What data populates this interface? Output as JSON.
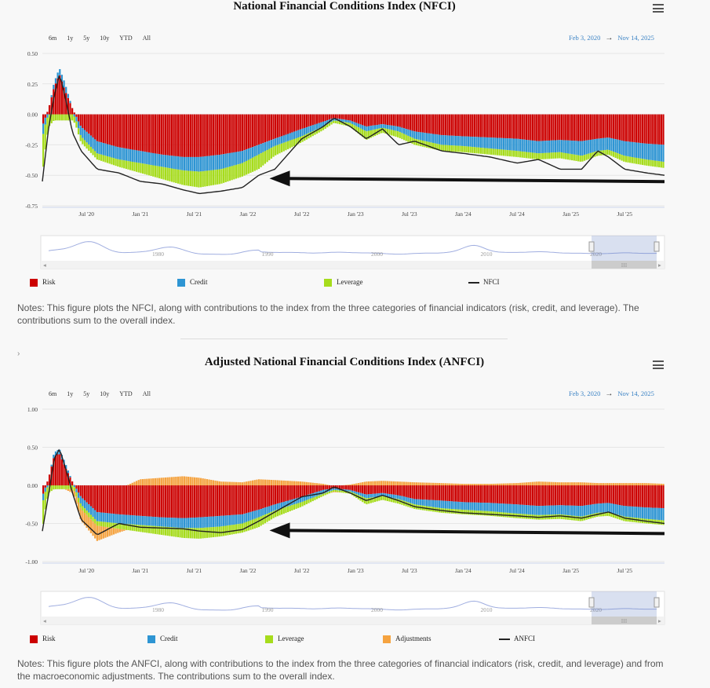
{
  "charts": [
    {
      "id": "nfci",
      "title": "National Financial Conditions Index (NFCI)",
      "range_buttons": [
        "6m",
        "1y",
        "5y",
        "10y",
        "YTD",
        "All"
      ],
      "date_from": "Feb 3, 2020",
      "date_arrow": "→",
      "date_to": "Nov 14, 2025",
      "legend": [
        {
          "label": "Risk",
          "color": "#cc0000",
          "kind": "box"
        },
        {
          "label": "Credit",
          "color": "#2e95d3",
          "kind": "box"
        },
        {
          "label": "Leverage",
          "color": "#a6dc1c",
          "kind": "box"
        },
        {
          "label": "NFCI",
          "color": "#222222",
          "kind": "line"
        }
      ],
      "navigator_ticks": [
        "1980",
        "1990",
        "2000",
        "2010",
        "2020"
      ],
      "notes": "Notes: This figure plots the NFCI, along with contributions to the index from the three categories of financial indicators (risk, credit, and leverage). The contributions sum to the overall index."
    },
    {
      "id": "anfci",
      "title": "Adjusted National Financial Conditions Index (ANFCI)",
      "range_buttons": [
        "6m",
        "1y",
        "5y",
        "10y",
        "YTD",
        "All"
      ],
      "date_from": "Feb 3, 2020",
      "date_arrow": "→",
      "date_to": "Nov 14, 2025",
      "legend": [
        {
          "label": "Risk",
          "color": "#cc0000",
          "kind": "box"
        },
        {
          "label": "Credit",
          "color": "#2e95d3",
          "kind": "box"
        },
        {
          "label": "Leverage",
          "color": "#a6dc1c",
          "kind": "box"
        },
        {
          "label": "Adjustments",
          "color": "#f5a340",
          "kind": "box"
        },
        {
          "label": "ANFCI",
          "color": "#222222",
          "kind": "line"
        }
      ],
      "navigator_ticks": [
        "1980",
        "1990",
        "2000",
        "2010",
        "2020"
      ],
      "notes": "Notes: This figure plots the ANFCI, along with contributions to the index from the three categories of financial indicators (risk, credit, and leverage) and from the macroeconomic adjustments. The contributions sum to the overall index."
    }
  ],
  "nav_scroll_glyph": "III",
  "nav_arrow_left": "◂",
  "nav_arrow_right": "▸",
  "chevron": "›",
  "chart_data": [
    {
      "type": "bar",
      "stacked": true,
      "title": "National Financial Conditions Index (NFCI)",
      "x_tick_labels": [
        "Jul '20",
        "Jan '21",
        "Jul '21",
        "Jan '22",
        "Jul '22",
        "Jan '23",
        "Jul '23",
        "Jan '24",
        "Jul '24",
        "Jan '25",
        "Jul '25"
      ],
      "x_tick_positions_years": [
        2020.5,
        2021.0,
        2021.5,
        2022.0,
        2022.5,
        2023.0,
        2023.5,
        2024.0,
        2024.5,
        2025.0,
        2025.5
      ],
      "x_range_years": [
        2020.09,
        2025.87
      ],
      "y_ticks": [
        0.5,
        0.25,
        0.0,
        -0.25,
        -0.5,
        -0.75
      ],
      "y_tick_labels": [
        "0.50",
        "0.25",
        "0.00",
        "-0.25",
        "-0.50",
        "-0.75"
      ],
      "ylim": [
        -0.75,
        0.5
      ],
      "x_anchor_years": [
        2020.09,
        2020.15,
        2020.2,
        2020.25,
        2020.3,
        2020.37,
        2020.45,
        2020.6,
        2020.8,
        2021.0,
        2021.2,
        2021.4,
        2021.55,
        2021.75,
        2021.95,
        2022.1,
        2022.25,
        2022.5,
        2022.7,
        2022.8,
        2022.95,
        2023.1,
        2023.25,
        2023.4,
        2023.55,
        2023.8,
        2024.0,
        2024.25,
        2024.5,
        2024.7,
        2024.9,
        2025.1,
        2025.25,
        2025.35,
        2025.5,
        2025.7,
        2025.87
      ],
      "series": [
        {
          "name": "Risk",
          "color": "#cc0000",
          "values": [
            -0.1,
            0.05,
            0.22,
            0.33,
            0.2,
            0.05,
            -0.1,
            -0.22,
            -0.27,
            -0.3,
            -0.33,
            -0.35,
            -0.35,
            -0.33,
            -0.3,
            -0.25,
            -0.2,
            -0.12,
            -0.06,
            -0.03,
            -0.05,
            -0.1,
            -0.08,
            -0.1,
            -0.14,
            -0.17,
            -0.18,
            -0.19,
            -0.2,
            -0.22,
            -0.21,
            -0.22,
            -0.2,
            -0.19,
            -0.22,
            -0.24,
            -0.25
          ]
        },
        {
          "name": "Credit",
          "color": "#2e95d3",
          "values": [
            -0.1,
            -0.01,
            0.04,
            0.05,
            0.06,
            0.0,
            -0.08,
            -0.1,
            -0.1,
            -0.1,
            -0.1,
            -0.11,
            -0.12,
            -0.12,
            -0.1,
            -0.08,
            -0.06,
            -0.06,
            -0.04,
            -0.02,
            -0.02,
            -0.04,
            -0.03,
            -0.04,
            -0.06,
            -0.08,
            -0.08,
            -0.09,
            -0.1,
            -0.1,
            -0.1,
            -0.12,
            -0.1,
            -0.1,
            -0.12,
            -0.13,
            -0.14
          ]
        },
        {
          "name": "Leverage",
          "color": "#a6dc1c",
          "values": [
            -0.3,
            -0.1,
            -0.05,
            -0.05,
            -0.05,
            -0.05,
            -0.05,
            -0.05,
            -0.06,
            -0.08,
            -0.1,
            -0.12,
            -0.13,
            -0.12,
            -0.11,
            -0.12,
            -0.08,
            -0.05,
            -0.03,
            -0.02,
            -0.03,
            -0.07,
            -0.04,
            -0.05,
            -0.05,
            -0.05,
            -0.05,
            -0.05,
            -0.05,
            -0.05,
            -0.05,
            -0.05,
            -0.04,
            -0.04,
            -0.05,
            -0.05,
            -0.05
          ]
        },
        {
          "name": "NFCI",
          "kind": "line",
          "color": "#222222",
          "values": [
            -0.55,
            -0.1,
            0.15,
            0.33,
            0.15,
            -0.15,
            -0.3,
            -0.45,
            -0.48,
            -0.55,
            -0.57,
            -0.62,
            -0.65,
            -0.63,
            -0.6,
            -0.5,
            -0.45,
            -0.2,
            -0.1,
            -0.03,
            -0.1,
            -0.2,
            -0.12,
            -0.25,
            -0.22,
            -0.3,
            -0.32,
            -0.35,
            -0.4,
            -0.37,
            -0.45,
            -0.45,
            -0.3,
            -0.35,
            -0.45,
            -0.48,
            -0.5
          ]
        }
      ],
      "annotation": {
        "type": "arrow",
        "from_year": 2025.87,
        "to_year": 2022.2,
        "y_value": -0.5
      }
    },
    {
      "type": "bar",
      "stacked": true,
      "title": "Adjusted National Financial Conditions Index (ANFCI)",
      "x_tick_labels": [
        "Jul '20",
        "Jan '21",
        "Jul '21",
        "Jan '22",
        "Jul '22",
        "Jan '23",
        "Jul '23",
        "Jan '24",
        "Jul '24",
        "Jan '25",
        "Jul '25"
      ],
      "x_tick_positions_years": [
        2020.5,
        2021.0,
        2021.5,
        2022.0,
        2022.5,
        2023.0,
        2023.5,
        2024.0,
        2024.5,
        2025.0,
        2025.5
      ],
      "x_range_years": [
        2020.09,
        2025.87
      ],
      "y_ticks": [
        1.0,
        0.5,
        0.0,
        -0.5,
        -1.0
      ],
      "y_tick_labels": [
        "1.00",
        "0.50",
        "0.00",
        "-0.50",
        "-1.00"
      ],
      "ylim": [
        -1.0,
        1.0
      ],
      "x_anchor_years": [
        2020.09,
        2020.15,
        2020.2,
        2020.25,
        2020.3,
        2020.37,
        2020.45,
        2020.6,
        2020.8,
        2021.0,
        2021.2,
        2021.4,
        2021.55,
        2021.75,
        2021.95,
        2022.1,
        2022.25,
        2022.5,
        2022.7,
        2022.8,
        2022.95,
        2023.1,
        2023.25,
        2023.4,
        2023.55,
        2023.8,
        2024.0,
        2024.25,
        2024.5,
        2024.7,
        2024.9,
        2025.1,
        2025.25,
        2025.35,
        2025.5,
        2025.7,
        2025.87
      ],
      "series": [
        {
          "name": "Risk",
          "color": "#cc0000",
          "values": [
            -0.15,
            0.1,
            0.38,
            0.42,
            0.25,
            0.05,
            -0.15,
            -0.35,
            -0.38,
            -0.4,
            -0.42,
            -0.43,
            -0.42,
            -0.4,
            -0.38,
            -0.32,
            -0.25,
            -0.15,
            -0.06,
            -0.04,
            -0.06,
            -0.12,
            -0.1,
            -0.13,
            -0.18,
            -0.2,
            -0.22,
            -0.23,
            -0.25,
            -0.27,
            -0.26,
            -0.27,
            -0.24,
            -0.23,
            -0.27,
            -0.29,
            -0.3
          ]
        },
        {
          "name": "Credit",
          "color": "#2e95d3",
          "values": [
            -0.1,
            -0.01,
            0.05,
            0.06,
            0.06,
            0.0,
            -0.1,
            -0.12,
            -0.12,
            -0.12,
            -0.12,
            -0.13,
            -0.14,
            -0.14,
            -0.12,
            -0.1,
            -0.08,
            -0.07,
            -0.05,
            -0.02,
            -0.02,
            -0.05,
            -0.04,
            -0.05,
            -0.07,
            -0.1,
            -0.1,
            -0.11,
            -0.12,
            -0.12,
            -0.12,
            -0.14,
            -0.12,
            -0.12,
            -0.14,
            -0.15,
            -0.16
          ]
        },
        {
          "name": "Leverage",
          "color": "#a6dc1c",
          "values": [
            -0.35,
            -0.1,
            -0.05,
            -0.05,
            -0.05,
            -0.05,
            -0.06,
            -0.06,
            -0.07,
            -0.09,
            -0.11,
            -0.13,
            -0.14,
            -0.13,
            -0.12,
            -0.13,
            -0.09,
            -0.06,
            -0.03,
            -0.02,
            -0.03,
            -0.08,
            -0.05,
            -0.06,
            -0.06,
            -0.06,
            -0.06,
            -0.06,
            -0.06,
            -0.06,
            -0.06,
            -0.06,
            -0.05,
            -0.05,
            -0.06,
            -0.06,
            -0.06
          ]
        },
        {
          "name": "Adjustments",
          "color": "#f5a340",
          "values": [
            0.0,
            0.0,
            0.0,
            0.0,
            0.0,
            -0.05,
            -0.15,
            -0.2,
            -0.05,
            0.08,
            0.1,
            0.12,
            0.1,
            0.05,
            0.04,
            0.08,
            0.07,
            0.05,
            0.02,
            -0.01,
            0.01,
            0.05,
            0.06,
            0.05,
            0.04,
            0.03,
            0.02,
            0.02,
            0.03,
            0.05,
            0.04,
            0.04,
            0.03,
            0.03,
            0.03,
            0.03,
            0.02
          ]
        },
        {
          "name": "ANFCI",
          "kind": "line",
          "color": "#222222",
          "values": [
            -0.6,
            -0.1,
            0.35,
            0.48,
            0.25,
            -0.1,
            -0.45,
            -0.65,
            -0.5,
            -0.55,
            -0.56,
            -0.57,
            -0.6,
            -0.62,
            -0.58,
            -0.47,
            -0.35,
            -0.15,
            -0.1,
            -0.02,
            -0.1,
            -0.2,
            -0.13,
            -0.2,
            -0.28,
            -0.33,
            -0.36,
            -0.38,
            -0.4,
            -0.42,
            -0.4,
            -0.43,
            -0.38,
            -0.35,
            -0.43,
            -0.47,
            -0.5
          ]
        }
      ],
      "annotation": {
        "type": "arrow",
        "from_year": 2025.87,
        "to_year": 2022.2,
        "y_value": -0.55
      }
    }
  ]
}
